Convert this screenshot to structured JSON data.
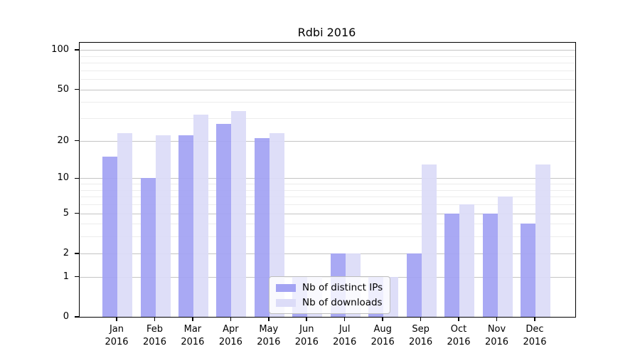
{
  "chart_data": {
    "type": "bar",
    "title": "Rdbi 2016",
    "categories": [
      "Jan",
      "Feb",
      "Mar",
      "Apr",
      "May",
      "Jun",
      "Jul",
      "Aug",
      "Sep",
      "Oct",
      "Nov",
      "Dec"
    ],
    "year_label": "2016",
    "series": [
      {
        "name": "Nb of distinct IPs",
        "values": [
          15,
          10,
          22,
          27,
          21,
          1,
          2,
          1,
          2,
          5,
          5,
          4
        ],
        "color": "#a3a3f3"
      },
      {
        "name": "Nb of downloads",
        "values": [
          23,
          22,
          32,
          34,
          23,
          1,
          2,
          1,
          13,
          6,
          7,
          13
        ],
        "color": "#dcdcf8"
      }
    ],
    "y_scale": "log10(1+x)",
    "ylim": [
      0,
      100
    ],
    "yticks": [
      0,
      1,
      2,
      5,
      10,
      20,
      50,
      100
    ],
    "minor_gridlines": [
      3,
      4,
      6,
      7,
      8,
      9,
      30,
      40,
      60,
      70,
      80,
      90
    ],
    "grid": "on",
    "legend_position": "bottom-center-inside",
    "colors": {
      "major_grid": "#c4c4c4",
      "minor_grid": "#ececec",
      "axis": "#000000",
      "background": "#ffffff"
    }
  }
}
